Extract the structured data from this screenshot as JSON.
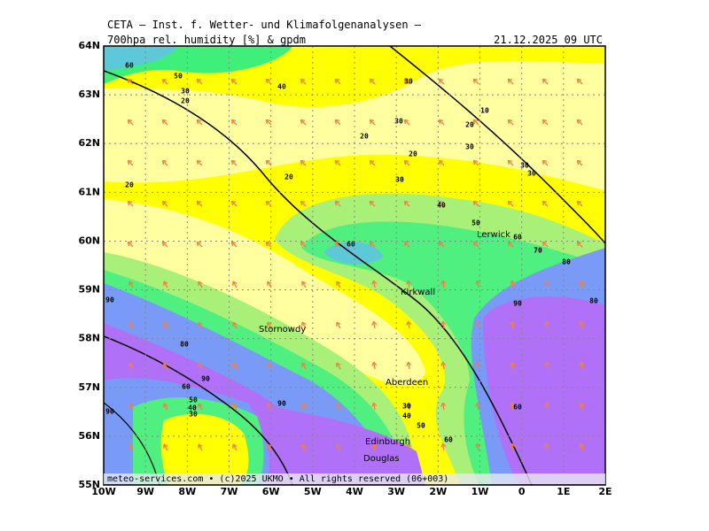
{
  "header": {
    "title": "CETA — Inst. f. Wetter- und Klimafolgenanalysen —",
    "field": "700hpa rel. humidity [%] & gpdm",
    "valid": "21.12.2025 09 UTC"
  },
  "map": {
    "lat_labels": [
      "64N",
      "63N",
      "62N",
      "61N",
      "60N",
      "59N",
      "58N",
      "57N",
      "56N",
      "55N"
    ],
    "lon_labels": [
      "10W",
      "9W",
      "8W",
      "7W",
      "6W",
      "5W",
      "4W",
      "3W",
      "2W",
      "1W",
      "0",
      "1E",
      "2E"
    ],
    "cities": [
      "Lerwick",
      "Kirkwall",
      "Stornowdy",
      "Aberdeen",
      "Edinburgh",
      "Douglas"
    ],
    "contour_labels": [
      "60",
      "50",
      "40",
      "30",
      "20",
      "30",
      "10",
      "20",
      "30",
      "30",
      "20",
      "20",
      "20",
      "20",
      "30",
      "40",
      "50",
      "60",
      "70",
      "80",
      "80",
      "90",
      "60",
      "90",
      "80",
      "90",
      "30",
      "40",
      "50",
      "60",
      "60",
      "90",
      "60",
      "50",
      "40",
      "30",
      "90",
      "30",
      "30"
    ]
  },
  "footer": "meteo-services.com • (c)2025 UKMO • All rights reserved (06+003)"
}
